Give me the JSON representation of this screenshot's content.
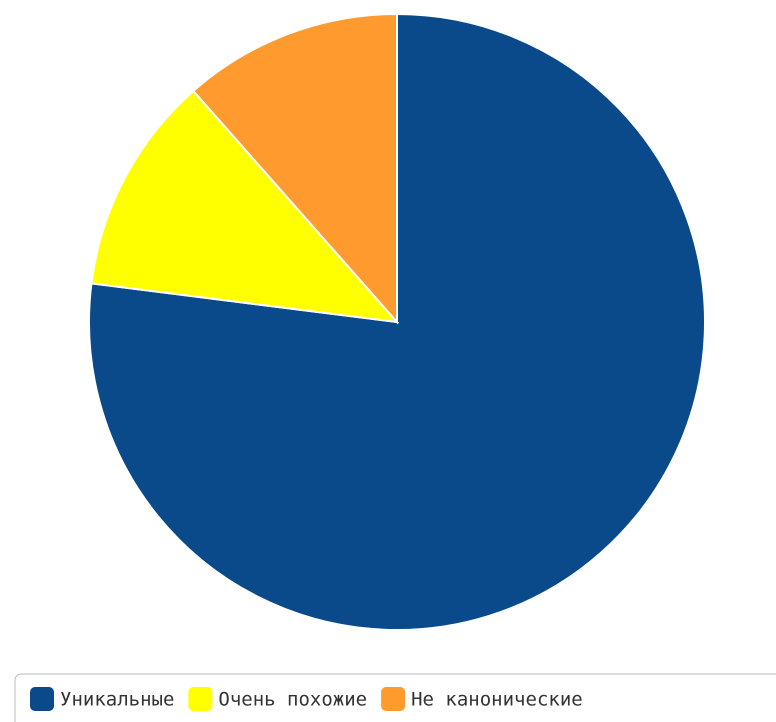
{
  "chart_data": {
    "type": "pie",
    "categories": [
      "Уникальные",
      "Очень похожие",
      "Не канонические"
    ],
    "values": [
      77,
      11.5,
      11.5
    ],
    "colors": [
      "#0a4a8a",
      "#ffff00",
      "#ff9a2e"
    ],
    "legend": "bottom"
  }
}
